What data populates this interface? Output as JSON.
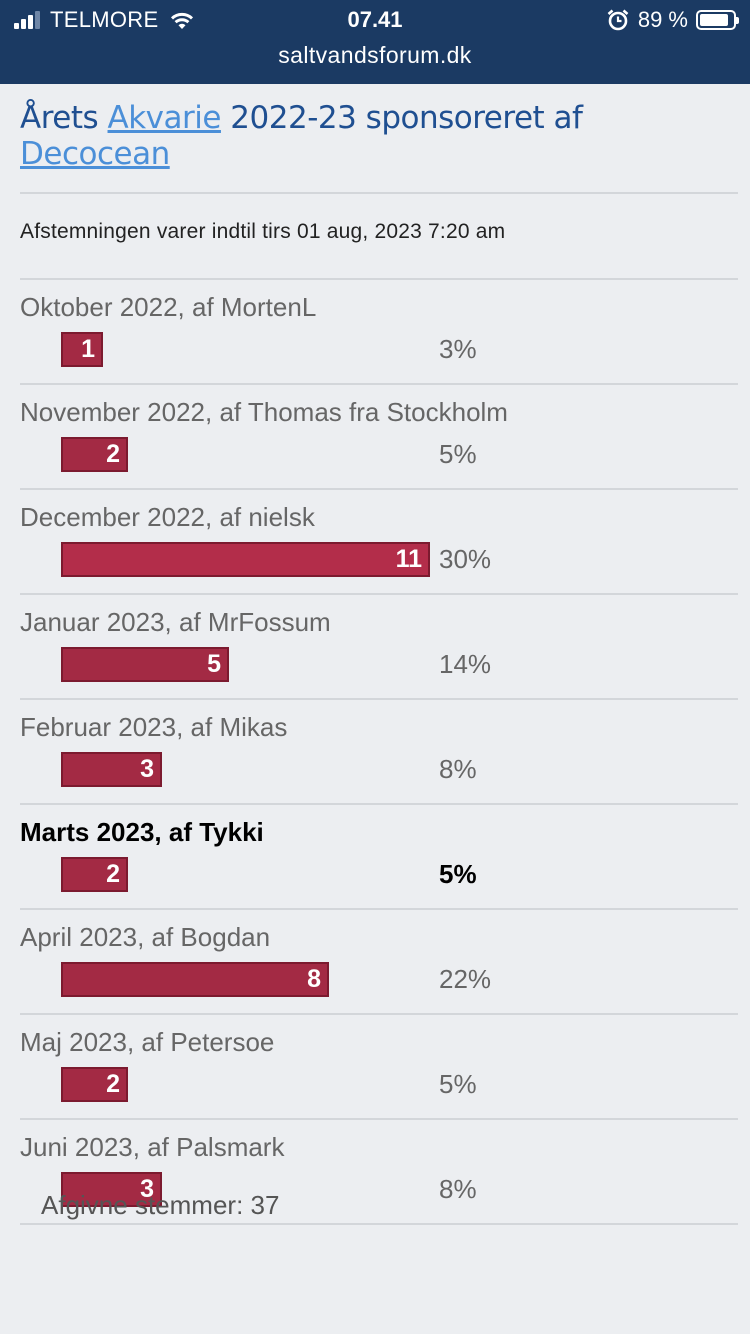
{
  "status_bar": {
    "carrier": "TELMORE",
    "time": "07.41",
    "battery_percent": "89 %",
    "battery_level": 0.89,
    "icons": [
      "signal-icon",
      "wifi-icon",
      "alarm-icon",
      "battery-icon"
    ]
  },
  "browser": {
    "url": "saltvandsforum.dk"
  },
  "poll": {
    "title_part1": "Årets ",
    "title_link1": "Akvarie",
    "title_part2": " 2022-23 sponsoreret af ",
    "title_link2": "Decocean",
    "ends_text": "Afstemningen varer indtil tirs 01 aug, 2023 7:20 am",
    "options": [
      {
        "label": "Oktober 2022, af MortenL",
        "votes": 1,
        "votes_label": "1",
        "percent": "3%"
      },
      {
        "label": "November 2022, af Thomas fra Stockholm",
        "votes": 2,
        "votes_label": "2",
        "percent": "5%"
      },
      {
        "label": "December 2022, af nielsk",
        "votes": 11,
        "votes_label": "11",
        "percent": "30%"
      },
      {
        "label": "Januar 2023, af MrFossum",
        "votes": 5,
        "votes_label": "5",
        "percent": "14%"
      },
      {
        "label": "Februar 2023, af Mikas",
        "votes": 3,
        "votes_label": "3",
        "percent": "8%"
      },
      {
        "label": "Marts 2023, af Tykki",
        "votes": 2,
        "votes_label": "2",
        "percent": "5%",
        "voted": true
      },
      {
        "label": "April 2023, af Bogdan",
        "votes": 8,
        "votes_label": "8",
        "percent": "22%"
      },
      {
        "label": "Maj 2023, af Petersoe",
        "votes": 2,
        "votes_label": "2",
        "percent": "5%"
      },
      {
        "label": "Juni 2023, af Palsmark",
        "votes": 3,
        "votes_label": "3",
        "percent": "8%"
      }
    ],
    "total_text": "Afgivne stemmer: 37",
    "colors": {
      "bar": "#a32a44",
      "title": "#1f4f91",
      "link": "#4b8fd8",
      "topbar": "#1b3a63"
    }
  }
}
